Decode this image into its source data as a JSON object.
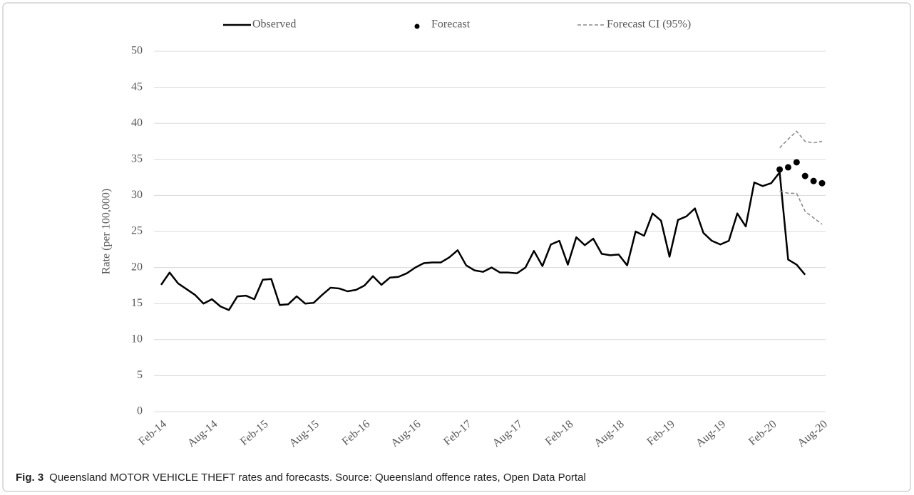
{
  "chart_data": {
    "type": "line",
    "caption_label": "Fig. 3",
    "caption": "Queensland MOTOR VEHICLE THEFT rates and forecasts.  Source: Queensland offence rates, Open Data Portal",
    "y_label": "Rate (per 100,000)",
    "ylim": [
      0,
      50
    ],
    "yticks": [
      0,
      5,
      10,
      15,
      20,
      25,
      30,
      35,
      40,
      45,
      50
    ],
    "grid": true,
    "categories": [
      "Feb-14",
      null,
      null,
      null,
      null,
      null,
      "Aug-14",
      null,
      null,
      null,
      null,
      null,
      "Feb-15",
      null,
      null,
      null,
      null,
      null,
      "Aug-15",
      null,
      null,
      null,
      null,
      null,
      "Feb-16",
      null,
      null,
      null,
      null,
      null,
      "Aug-16",
      null,
      null,
      null,
      null,
      null,
      "Feb-17",
      null,
      null,
      null,
      null,
      null,
      "Aug-17",
      null,
      null,
      null,
      null,
      null,
      "Feb-18",
      null,
      null,
      null,
      null,
      null,
      "Aug-18",
      null,
      null,
      null,
      null,
      null,
      "Feb-19",
      null,
      null,
      null,
      null,
      null,
      "Aug-19",
      null,
      null,
      null,
      null,
      null,
      "Feb-20",
      null,
      null,
      null,
      null,
      null,
      "Aug-20"
    ],
    "series": [
      {
        "name": "Observed",
        "color": "#000000",
        "style": "line",
        "values": [
          17.6,
          19.3,
          17.8,
          17.0,
          16.2,
          15.0,
          15.6,
          14.6,
          14.1,
          16.0,
          16.1,
          15.6,
          18.3,
          18.4,
          14.8,
          14.9,
          16.0,
          15.0,
          15.1,
          16.2,
          17.2,
          17.1,
          16.7,
          16.9,
          17.5,
          18.8,
          17.6,
          18.6,
          18.7,
          19.2,
          20.0,
          20.6,
          20.7,
          20.7,
          21.4,
          22.4,
          20.3,
          19.6,
          19.4,
          20.0,
          19.3,
          19.3,
          19.2,
          20.0,
          22.3,
          20.2,
          23.2,
          23.7,
          20.4,
          24.2,
          23.1,
          24.0,
          21.9,
          21.7,
          21.8,
          20.3,
          25.0,
          24.4,
          27.5,
          26.5,
          21.5,
          26.6,
          27.1,
          28.2,
          24.8,
          23.7,
          23.2,
          23.7,
          27.5,
          25.7,
          31.8,
          31.3,
          31.7,
          33.2,
          21.1,
          20.4,
          19.0,
          null,
          null
        ]
      },
      {
        "name": "Forecast",
        "color": "#000000",
        "style": "dots",
        "values": [
          null,
          null,
          null,
          null,
          null,
          null,
          null,
          null,
          null,
          null,
          null,
          null,
          null,
          null,
          null,
          null,
          null,
          null,
          null,
          null,
          null,
          null,
          null,
          null,
          null,
          null,
          null,
          null,
          null,
          null,
          null,
          null,
          null,
          null,
          null,
          null,
          null,
          null,
          null,
          null,
          null,
          null,
          null,
          null,
          null,
          null,
          null,
          null,
          null,
          null,
          null,
          null,
          null,
          null,
          null,
          null,
          null,
          null,
          null,
          null,
          null,
          null,
          null,
          null,
          null,
          null,
          null,
          null,
          null,
          null,
          null,
          null,
          null,
          33.6,
          33.9,
          34.6,
          32.7,
          32.0,
          31.7
        ]
      },
      {
        "name": "Forecast CI (95%)",
        "color": "#888888",
        "style": "dashed",
        "upper": [
          null,
          null,
          null,
          null,
          null,
          null,
          null,
          null,
          null,
          null,
          null,
          null,
          null,
          null,
          null,
          null,
          null,
          null,
          null,
          null,
          null,
          null,
          null,
          null,
          null,
          null,
          null,
          null,
          null,
          null,
          null,
          null,
          null,
          null,
          null,
          null,
          null,
          null,
          null,
          null,
          null,
          null,
          null,
          null,
          null,
          null,
          null,
          null,
          null,
          null,
          null,
          null,
          null,
          null,
          null,
          null,
          null,
          null,
          null,
          null,
          null,
          null,
          null,
          null,
          null,
          null,
          null,
          null,
          null,
          null,
          null,
          null,
          null,
          36.6,
          37.8,
          38.9,
          37.5,
          37.3,
          37.5
        ],
        "lower": [
          null,
          null,
          null,
          null,
          null,
          null,
          null,
          null,
          null,
          null,
          null,
          null,
          null,
          null,
          null,
          null,
          null,
          null,
          null,
          null,
          null,
          null,
          null,
          null,
          null,
          null,
          null,
          null,
          null,
          null,
          null,
          null,
          null,
          null,
          null,
          null,
          null,
          null,
          null,
          null,
          null,
          null,
          null,
          null,
          null,
          null,
          null,
          null,
          null,
          null,
          null,
          null,
          null,
          null,
          null,
          null,
          null,
          null,
          null,
          null,
          null,
          null,
          null,
          null,
          null,
          null,
          null,
          null,
          null,
          null,
          null,
          null,
          null,
          30.6,
          30.3,
          30.3,
          27.8,
          26.9,
          26.0
        ]
      }
    ]
  }
}
